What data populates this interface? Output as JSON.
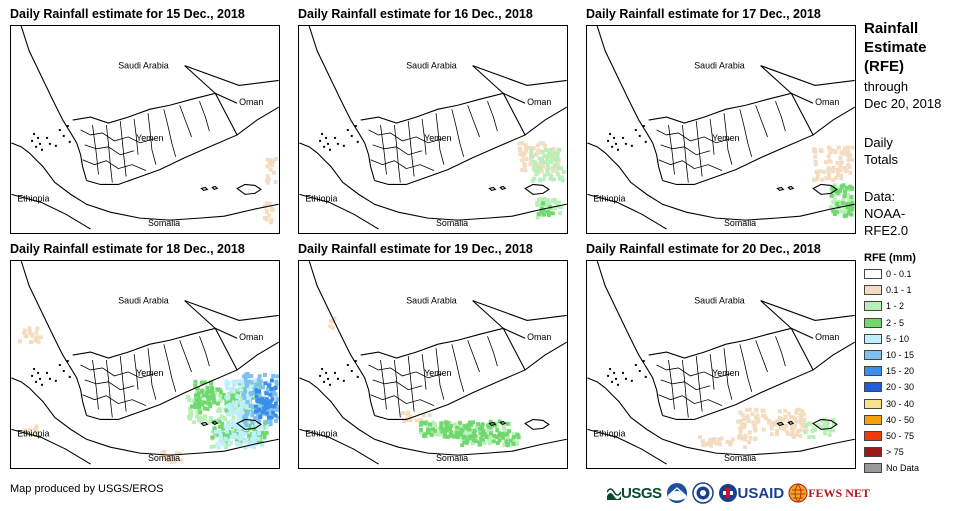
{
  "panels": [
    {
      "title": "Daily Rainfall estimate for 15 Dec., 2018",
      "rain": [
        {
          "level": "0.1 - 1",
          "area": "patches off Oman coast / Arabian Sea east"
        },
        {
          "level": "0.1 - 1",
          "area": "small spots near eastern edge south"
        }
      ]
    },
    {
      "title": "Daily Rainfall estimate for 16 Dec., 2018",
      "rain": [
        {
          "level": "0.1 - 1",
          "area": "Arabian Sea east of Yemen"
        },
        {
          "level": "1 - 2",
          "area": "Arabian Sea east and near Socotra"
        },
        {
          "level": "2 - 5",
          "area": "spots near Socotra"
        }
      ]
    },
    {
      "title": "Daily Rainfall estimate for 17 Dec., 2018",
      "rain": [
        {
          "level": "0.1 - 1",
          "area": "Arabian Sea east"
        },
        {
          "level": "1 - 2",
          "area": "east of Socotra"
        },
        {
          "level": "2 - 5",
          "area": "east of Socotra"
        }
      ]
    },
    {
      "title": "Daily Rainfall estimate for 18 Dec., 2018",
      "rain": [
        {
          "level": "0.1 - 1",
          "area": "Ethiopian highlands, Gulf of Aden"
        },
        {
          "level": "1 - 2",
          "area": "eastern Yemen coast, Gulf of Aden"
        },
        {
          "level": "2 - 5",
          "area": "eastern Yemen / Arabian Sea"
        },
        {
          "level": "5 - 10",
          "area": "Arabian Sea and Socotra"
        },
        {
          "level": "10 - 15",
          "area": "Arabian Sea near Socotra"
        },
        {
          "level": "15 - 20",
          "area": "Arabian Sea core"
        }
      ]
    },
    {
      "title": "Daily Rainfall estimate for 19 Dec., 2018",
      "rain": [
        {
          "level": "0.1 - 1",
          "area": "scattered, Saudi Arabia west and Gulf of Aden"
        },
        {
          "level": "1 - 2",
          "area": "Gulf of Aden coast"
        },
        {
          "level": "2 - 5",
          "area": "Gulf of Aden coast"
        }
      ]
    },
    {
      "title": "Daily Rainfall estimate for 20 Dec., 2018",
      "rain": [
        {
          "level": "0.1 - 1",
          "area": "eastern Yemen coast and Gulf of Aden"
        },
        {
          "level": "1 - 2",
          "area": "Socotra area"
        }
      ]
    }
  ],
  "map_labels": {
    "saudi_arabia": "Saudi Arabia",
    "oman": "Oman",
    "yemen": "Yemen",
    "ethiopia": "Ethiopia",
    "somalia": "Somalia"
  },
  "sidebar": {
    "title_line1": "Rainfall",
    "title_line2": "Estimate",
    "title_line3": "(RFE)",
    "through": "through",
    "date": "Dec 20, 2018",
    "daily": "Daily",
    "totals": "Totals",
    "data_label": "Data:",
    "data_source1": "NOAA-",
    "data_source2": "RFE2.0"
  },
  "legend": {
    "title": "RFE (mm)",
    "items": [
      {
        "label": "0 - 0.1",
        "color": "#ffffff"
      },
      {
        "label": "0.1 - 1",
        "color": "#f4dcc0"
      },
      {
        "label": "1 - 2",
        "color": "#b8f0b8"
      },
      {
        "label": "2 - 5",
        "color": "#6fd96f"
      },
      {
        "label": "5 - 10",
        "color": "#bfefff"
      },
      {
        "label": "10 - 15",
        "color": "#7ec0ee"
      },
      {
        "label": "15 - 20",
        "color": "#3b8fe8"
      },
      {
        "label": "20 - 30",
        "color": "#1c5fd6"
      },
      {
        "label": "30 - 40",
        "color": "#f6e38a"
      },
      {
        "label": "40 - 50",
        "color": "#f5a20a"
      },
      {
        "label": "50 - 75",
        "color": "#f03a0a"
      },
      {
        "label": "> 75",
        "color": "#9c1a1a"
      },
      {
        "label": "No Data",
        "color": "#999999"
      }
    ]
  },
  "footer": {
    "credit": "Map produced by USGS/EROS",
    "logos": [
      "USGS",
      "NOAA",
      "DHS",
      "USAID",
      "FEWS NET"
    ]
  }
}
